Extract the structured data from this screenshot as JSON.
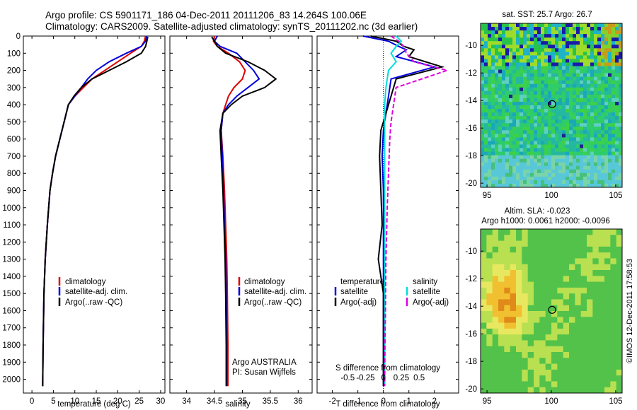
{
  "header": {
    "line1": "Argo profile: CS 5901171_186 04-Dec-2011 20111206_83 14.264S 100.06E",
    "line2": "Climatology: CARS2009. Satellite-adjusted climatology: synTS_20111202.nc (3d earlier)"
  },
  "timestamp": "©IMOS 12-Dec-2011 17:58:53",
  "colors": {
    "climatology": "#dd0000",
    "satellite": "#0000dd",
    "argo": "#000000",
    "cyan": "#00dddd",
    "magenta": "#dd00dd"
  },
  "chart_data": [
    {
      "type": "line",
      "id": "temperature",
      "xlabel": "temperature (deg C)",
      "xlim": [
        -2,
        31
      ],
      "xticks": [
        0,
        5,
        10,
        15,
        20,
        25,
        30
      ],
      "xtick_labels": [
        "0",
        "5",
        "10",
        "15",
        "20",
        "25",
        "30"
      ],
      "ylim": [
        0,
        2080
      ],
      "yticks": [
        0,
        100,
        200,
        300,
        400,
        500,
        600,
        700,
        800,
        900,
        1000,
        1100,
        1200,
        1300,
        1400,
        1500,
        1600,
        1700,
        1800,
        1900,
        2000
      ],
      "ytick_labels": [
        "0",
        "100",
        "200",
        "300",
        "400",
        "500",
        "600",
        "700",
        "800",
        "900",
        "1000",
        "1100",
        "1200",
        "1300",
        "1400",
        "1500",
        "1600",
        "1700",
        "1800",
        "1900",
        "2000"
      ],
      "legend": [
        "climatology",
        "satellite-adj. clim.",
        "Argo(..raw -QC)"
      ],
      "series": [
        {
          "name": "climatology",
          "color": "#dd0000",
          "x": [
            26.5,
            26.2,
            25.5,
            23,
            20,
            17,
            14,
            12,
            10,
            8.5,
            7.5,
            6.5,
            5.5,
            4.8,
            4.2,
            3.6,
            3.1,
            2.8,
            2.6,
            2.5
          ],
          "y": [
            0,
            30,
            60,
            100,
            150,
            200,
            250,
            300,
            350,
            400,
            500,
            600,
            700,
            800,
            900,
            1100,
            1300,
            1500,
            1800,
            2040
          ]
        },
        {
          "name": "satellite-adj. clim.",
          "color": "#0000dd",
          "x": [
            26.8,
            26.5,
            25.5,
            22,
            18,
            15,
            13,
            11.5,
            10,
            8.5,
            7.5,
            6.5,
            5.5,
            4.8,
            4.2,
            3.6,
            3.1,
            2.8,
            2.6,
            2.5
          ],
          "y": [
            0,
            30,
            60,
            100,
            150,
            200,
            250,
            300,
            350,
            400,
            500,
            600,
            700,
            800,
            900,
            1100,
            1300,
            1500,
            1800,
            2040
          ]
        },
        {
          "name": "Argo(..raw -QC)",
          "color": "#000000",
          "x": [
            27,
            26.8,
            26.5,
            25.5,
            22,
            18,
            14,
            11.5,
            9.8,
            8.5,
            7.5,
            6.5,
            5.5,
            4.8,
            4.2,
            3.6,
            3.1,
            2.8,
            2.6,
            2.5
          ],
          "y": [
            5,
            30,
            60,
            100,
            150,
            200,
            250,
            300,
            350,
            400,
            500,
            600,
            700,
            800,
            900,
            1100,
            1300,
            1500,
            1800,
            2040
          ]
        }
      ]
    },
    {
      "type": "line",
      "id": "salinity",
      "xlabel": "salinity",
      "xlim": [
        33.7,
        36.25
      ],
      "xticks": [
        34,
        34.5,
        35,
        35.5,
        36
      ],
      "xtick_labels": [
        "34",
        "34.5",
        "35",
        "35.5",
        "36"
      ],
      "ylim": [
        0,
        2080
      ],
      "legend": [
        "climatology",
        "satellite-adj. clim.",
        "Argo(..raw -QC)"
      ],
      "annotation": [
        "Argo AUSTRALIA",
        "PI: Susan Wijffels"
      ],
      "series": [
        {
          "name": "climatology",
          "color": "#dd0000",
          "x": [
            34.5,
            34.48,
            34.55,
            34.75,
            34.95,
            35.05,
            35.0,
            34.85,
            34.75,
            34.7,
            34.65,
            34.62,
            34.65,
            34.68,
            34.7,
            34.72,
            34.73,
            34.74,
            34.74
          ],
          "y": [
            0,
            30,
            60,
            100,
            150,
            200,
            250,
            300,
            350,
            400,
            450,
            550,
            700,
            900,
            1100,
            1300,
            1500,
            1800,
            2040
          ]
        },
        {
          "name": "satellite-adj. clim.",
          "color": "#0000dd",
          "x": [
            34.55,
            34.5,
            34.6,
            34.9,
            35.05,
            35.2,
            35.3,
            35.1,
            34.9,
            34.75,
            34.65,
            34.62,
            34.64,
            34.66,
            34.68,
            34.7,
            34.71,
            34.72,
            34.72
          ],
          "y": [
            0,
            30,
            60,
            100,
            150,
            200,
            250,
            300,
            350,
            400,
            450,
            550,
            700,
            900,
            1100,
            1300,
            1500,
            1800,
            2040
          ]
        },
        {
          "name": "Argo(..raw -QC)",
          "color": "#000000",
          "x": [
            34.45,
            34.5,
            34.55,
            34.7,
            35.1,
            35.4,
            35.6,
            35.4,
            35.0,
            34.8,
            34.65,
            34.6,
            34.62,
            34.65,
            34.67,
            34.69,
            34.7,
            34.71,
            34.71
          ],
          "y": [
            5,
            30,
            60,
            100,
            150,
            200,
            250,
            300,
            350,
            400,
            450,
            550,
            700,
            900,
            1100,
            1300,
            1500,
            1800,
            2040
          ]
        }
      ]
    },
    {
      "type": "line",
      "id": "difference",
      "xlabel": "T difference from climatology",
      "xlabel_top": "S difference from climatology",
      "xlim": [
        -2.6,
        2.95
      ],
      "xticks": [
        -2,
        -1,
        0,
        1,
        2
      ],
      "xtick_labels": [
        "-2",
        "-1",
        "0",
        "1",
        "2"
      ],
      "sticks_at": [
        -1.4,
        -0.7,
        0.0,
        0.7,
        1.4
      ],
      "stick_labels": [
        "-0.5",
        "-0.25",
        "0",
        "0.25",
        "0.5"
      ],
      "ylim": [
        0,
        2080
      ],
      "legend_titles": [
        "temperature",
        "salinity"
      ],
      "legend": [
        "satellite",
        "Argo(-adj)",
        "satellite",
        "Argo(-adj)"
      ],
      "series": [
        {
          "name": "satellite",
          "group": "temperature",
          "color": "#0000dd",
          "x": [
            -0.8,
            0.2,
            0.6,
            0.9,
            0.5,
            2.0,
            0.3,
            0.2,
            0.1,
            0,
            -0.05,
            0,
            0,
            0,
            0,
            0,
            0
          ],
          "y": [
            0,
            30,
            60,
            80,
            120,
            180,
            250,
            350,
            450,
            550,
            700,
            900,
            1100,
            1300,
            1500,
            1800,
            2040
          ]
        },
        {
          "name": "Argo(-adj)",
          "group": "temperature",
          "color": "#000000",
          "x": [
            -0.5,
            0.5,
            0.8,
            1.2,
            1.0,
            2.3,
            0.5,
            0.3,
            0.1,
            -0.1,
            -0.15,
            -0.1,
            -0.05,
            -0.2,
            0,
            0,
            0
          ],
          "y": [
            0,
            30,
            60,
            80,
            120,
            180,
            250,
            350,
            450,
            550,
            700,
            900,
            1100,
            1300,
            1500,
            1800,
            2040
          ]
        },
        {
          "name": "satellite",
          "group": "salinity",
          "color": "#00dddd",
          "x": [
            0.5,
            0.7,
            0.5,
            0.3,
            0.5,
            0.2,
            0.1,
            0.05,
            0.05,
            0.05,
            0.05,
            0.05,
            0.05,
            0.05,
            0.05,
            0.05
          ],
          "y": [
            0,
            30,
            60,
            100,
            150,
            200,
            300,
            400,
            500,
            600,
            800,
            1000,
            1300,
            1600,
            1800,
            2040
          ]
        },
        {
          "name": "Argo(-adj)",
          "group": "salinity",
          "color": "#dd00dd",
          "x": [
            0.3,
            0.6,
            0.8,
            0.9,
            1.2,
            2.5,
            0.5,
            0.4,
            0.3,
            0.25,
            0.2,
            0.15,
            0.1,
            0.08,
            0.06,
            0.05
          ],
          "y": [
            0,
            30,
            60,
            100,
            150,
            200,
            300,
            400,
            500,
            600,
            800,
            1000,
            1300,
            1600,
            1800,
            2040
          ]
        }
      ]
    },
    {
      "type": "heatmap",
      "id": "sst",
      "title": "sat. SST: 25.7  Argo: 26.7",
      "xlim": [
        94.5,
        105.5
      ],
      "ylim": [
        -20.3,
        -8.4
      ],
      "xticks": [
        95,
        100,
        105
      ],
      "xtick_labels": [
        "95",
        "100",
        "105"
      ],
      "yticks": [
        -20,
        -18,
        -16,
        -14,
        -12,
        -10
      ],
      "ytick_labels": [
        "-20",
        "-18",
        "-16",
        "-14",
        "-12",
        "-10"
      ],
      "marker": {
        "lon": 100.06,
        "lat": -14.264
      }
    },
    {
      "type": "heatmap",
      "id": "sla",
      "title": "Altim. SLA: -0.023",
      "subtitle": "Argo h1000: 0.0061  h2000: -0.0096",
      "xlim": [
        94.5,
        105.5
      ],
      "ylim": [
        -20.3,
        -8.4
      ],
      "xticks": [
        95,
        100,
        105
      ],
      "xtick_labels": [
        "95",
        "100",
        "105"
      ],
      "yticks": [
        -20,
        -18,
        -16,
        -14,
        -12,
        -10
      ],
      "ytick_labels": [
        "-20",
        "-18",
        "-16",
        "-14",
        "-12",
        "-10"
      ],
      "marker": {
        "lon": 100.06,
        "lat": -14.264
      }
    }
  ]
}
